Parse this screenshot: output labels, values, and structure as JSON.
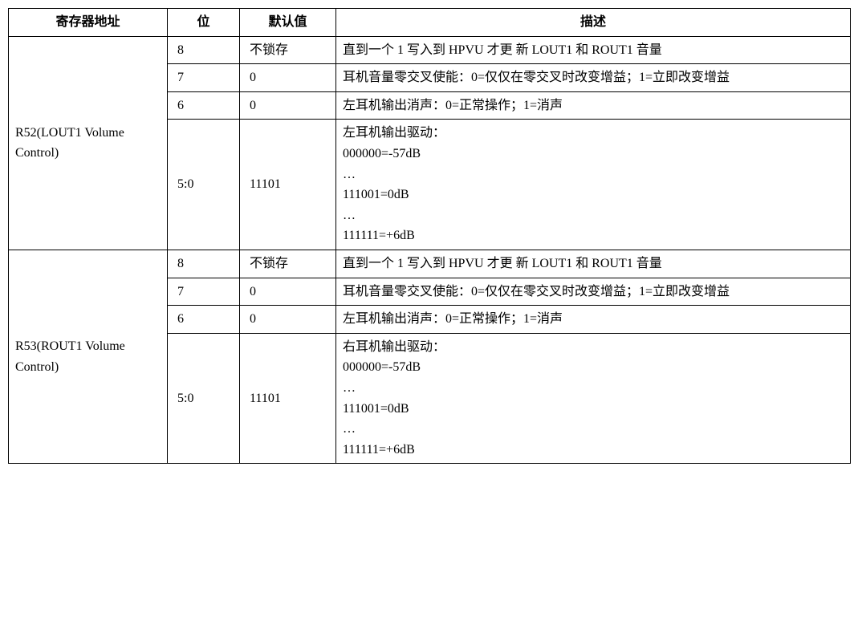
{
  "table": {
    "headers": {
      "addr": "寄存器地址",
      "bit": "位",
      "def": "默认值",
      "desc": "描述"
    },
    "registers": [
      {
        "name": "R52(LOUT1 Volume Control)",
        "rows": [
          {
            "bit": "8",
            "def": "不锁存",
            "desc": "直到一个 1 写入到 HPVU 才更 新 LOUT1 和 ROUT1 音量"
          },
          {
            "bit": "7",
            "def": "0",
            "desc": "耳机音量零交叉使能：0=仅仅在零交叉时改变增益；1=立即改变增益"
          },
          {
            "bit": "6",
            "def": "0",
            "desc": "左耳机输出消声：0=正常操作；1=消声"
          },
          {
            "bit": "5:0",
            "def": "11101",
            "desc": "左耳机输出驱动：\n000000=-57dB\n…\n111001=0dB\n…\n111111=+6dB"
          }
        ]
      },
      {
        "name": "R53(ROUT1 Volume Control)",
        "rows": [
          {
            "bit": "8",
            "def": "不锁存",
            "desc": "直到一个 1 写入到 HPVU 才更 新 LOUT1 和 ROUT1 音量"
          },
          {
            "bit": "7",
            "def": "0",
            "desc": "耳机音量零交叉使能：0=仅仅在零交叉时改变增益；1=立即改变增益"
          },
          {
            "bit": "6",
            "def": "0",
            "desc": "左耳机输出消声：0=正常操作；1=消声"
          },
          {
            "bit": "5:0",
            "def": "11101",
            "desc": "右耳机输出驱动：\n000000=-57dB\n…\n111001=0dB\n…\n111111=+6dB"
          }
        ]
      }
    ]
  }
}
